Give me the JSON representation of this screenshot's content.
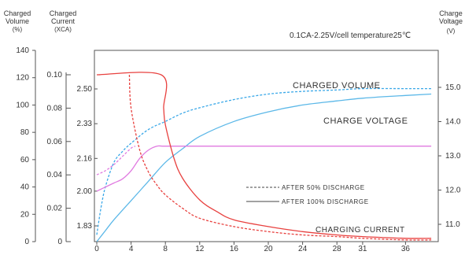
{
  "header": {
    "left_axis_1_title": [
      "Charged",
      "Volume",
      "(%)"
    ],
    "left_axis_2_title": [
      "Charged",
      "Current",
      "(XCA)"
    ],
    "right_axis_title": [
      "Charge",
      "Voltage",
      "(V)"
    ],
    "condition": "0.1CA-2.25V/cell  temperature25℃"
  },
  "colors": {
    "red": "#e8413f",
    "blue": "#5cb8e8",
    "blue_dashed": "#3aa8e8",
    "pink": "#e07ae0",
    "axis": "#555555"
  },
  "chart_data": {
    "type": "line",
    "x_tick_labels": [
      "0",
      "4",
      "8",
      "12",
      "16",
      "20",
      "24",
      "28",
      "31",
      "36"
    ],
    "axes": {
      "charged_volume_pct": {
        "ticks": [
          "0",
          "20",
          "40",
          "60",
          "80",
          "100",
          "120",
          "140"
        ],
        "range": [
          0,
          140
        ]
      },
      "charged_current_xca": {
        "ticks": [
          "0",
          "0.02",
          "0.04",
          "0.06",
          "0.08",
          "0.10"
        ],
        "range": [
          0,
          0.1
        ]
      },
      "cell_voltage": {
        "ticks": [
          "1.83",
          "2.00",
          "2.16",
          "2.33",
          "2.50"
        ],
        "range": [
          1.83,
          2.5
        ]
      },
      "charge_voltage": {
        "ticks": [
          "11.0",
          "12.0",
          "13.0",
          "14.0",
          "15.0"
        ],
        "range": [
          11.0,
          15.0
        ]
      }
    },
    "annotations": {
      "charged_volume": "CHARGED VOLUME",
      "charge_voltage": "CHARGE VOLTAGE",
      "charging_current": "CHARGING CURRENT"
    },
    "legend": [
      {
        "label": "AFTER 50% DISCHARGE",
        "style": "dashed"
      },
      {
        "label": "AFTER 100% DISCHARGE",
        "style": "solid"
      }
    ],
    "series": [
      {
        "name": "CHARGED VOLUME",
        "condition": "AFTER 100% DISCHARGE",
        "axis": "charged_volume_pct",
        "color": "blue",
        "dash": false,
        "x": [
          0,
          1,
          2,
          4,
          6,
          8,
          10,
          12,
          16,
          20,
          24,
          28,
          31,
          36,
          39
        ],
        "y": [
          0,
          8,
          16,
          30,
          44,
          58,
          68,
          77,
          88,
          95,
          100,
          103,
          105,
          107,
          108
        ]
      },
      {
        "name": "CHARGED VOLUME",
        "condition": "AFTER 50% DISCHARGE",
        "axis": "charged_volume_pct",
        "color": "blue_dashed",
        "dash": true,
        "x": [
          0,
          0.5,
          1,
          2,
          3,
          4,
          6,
          8,
          10,
          12,
          16,
          20,
          24,
          28,
          31,
          36,
          39
        ],
        "y": [
          5,
          25,
          40,
          58,
          66,
          72,
          82,
          88,
          94,
          98,
          104,
          108,
          110,
          111,
          112,
          112,
          112
        ]
      },
      {
        "name": "CHARGE VOLTAGE",
        "condition": "AFTER 100% DISCHARGE",
        "axis": "cell_voltage",
        "color": "pink",
        "dash": false,
        "x": [
          0,
          1,
          2,
          3,
          4,
          5,
          6,
          7,
          8,
          12,
          20,
          28,
          36,
          39
        ],
        "y": [
          2.0,
          2.02,
          2.04,
          2.06,
          2.1,
          2.16,
          2.2,
          2.22,
          2.22,
          2.22,
          2.22,
          2.22,
          2.22,
          2.22
        ]
      },
      {
        "name": "CHARGE VOLTAGE",
        "condition": "AFTER 50% DISCHARGE",
        "axis": "cell_voltage",
        "color": "pink",
        "dash": true,
        "x": [
          0,
          1,
          2,
          3,
          4,
          4.5
        ],
        "y": [
          2.08,
          2.1,
          2.13,
          2.17,
          2.21,
          2.22
        ]
      },
      {
        "name": "CHARGING CURRENT",
        "condition": "AFTER 100% DISCHARGE",
        "axis": "charged_current_xca",
        "color": "red",
        "dash": false,
        "x": [
          0,
          7.5,
          7.8,
          8,
          9,
          10,
          12,
          14,
          16,
          20,
          24,
          28,
          31,
          36,
          39
        ],
        "y": [
          0.1,
          0.1,
          0.08,
          0.07,
          0.05,
          0.038,
          0.025,
          0.018,
          0.013,
          0.009,
          0.006,
          0.004,
          0.003,
          0.002,
          0.002
        ]
      },
      {
        "name": "CHARGING CURRENT",
        "condition": "AFTER 50% DISCHARGE",
        "axis": "charged_current_xca",
        "color": "red",
        "dash": true,
        "x": [
          3.8,
          4,
          5,
          6,
          7,
          8,
          10,
          12,
          16,
          20,
          24,
          28,
          31,
          36,
          39
        ],
        "y": [
          0.1,
          0.08,
          0.055,
          0.042,
          0.034,
          0.028,
          0.02,
          0.014,
          0.009,
          0.006,
          0.004,
          0.003,
          0.002,
          0.001,
          0.001
        ]
      }
    ]
  }
}
